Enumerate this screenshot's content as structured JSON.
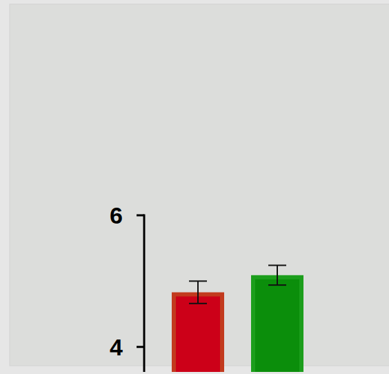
{
  "chart_data": {
    "type": "bar",
    "categories": [
      null,
      null
    ],
    "values": [
      4.83,
      5.09
    ],
    "errors": [
      0.17,
      0.15
    ],
    "colors": [
      "#cc0018",
      "#0b8e0b"
    ],
    "ylim": [
      3.62,
      6
    ],
    "yticks": [
      4,
      6
    ],
    "grid": false
  }
}
